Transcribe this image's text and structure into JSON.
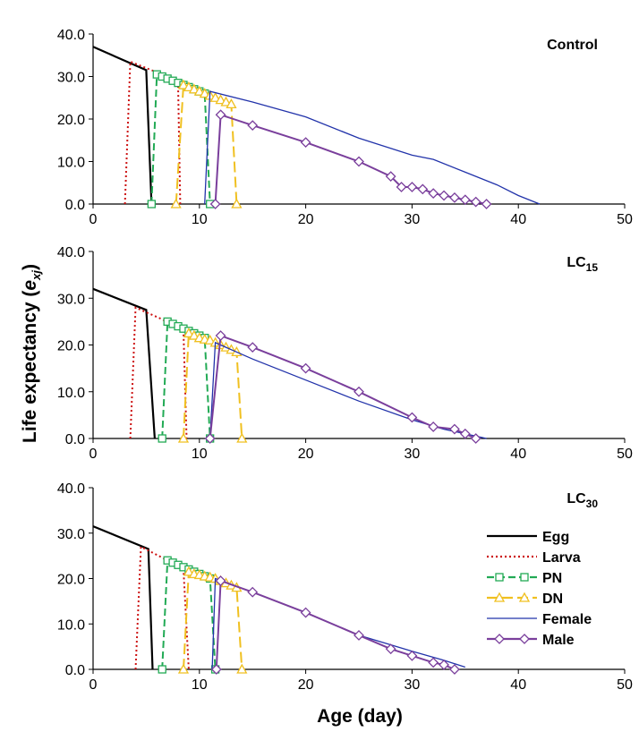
{
  "y_axis_title_prefix": "Life  expectancy (",
  "y_axis_title_sym": "e",
  "y_axis_title_sub": "xj",
  "y_axis_title_suffix": ")",
  "x_axis_title": "Age (day)",
  "legend": [
    "Egg",
    "Larva",
    "PN",
    "DN",
    "Female",
    "Male"
  ],
  "series_style": {
    "Egg": {
      "color": "#000000",
      "dash": "",
      "marker": "none"
    },
    "Larva": {
      "color": "#cc1111",
      "dash": "2,3",
      "marker": "none"
    },
    "PN": {
      "color": "#22aa55",
      "dash": "8,4",
      "marker": "square"
    },
    "DN": {
      "color": "#f0c020",
      "dash": "12,5",
      "marker": "triangle"
    },
    "Female": {
      "color": "#2233aa",
      "dash": "",
      "marker": "none"
    },
    "Male": {
      "color": "#7a3f9c",
      "dash": "",
      "marker": "diamond"
    }
  },
  "chart_data": [
    {
      "type": "line",
      "title": "Control",
      "title_sub": "",
      "xlim": [
        0,
        50
      ],
      "ylim": [
        0,
        40
      ],
      "xticks": [
        "0",
        "10",
        "20",
        "30",
        "40",
        "50"
      ],
      "yticks": [
        "0.0",
        "10.0",
        "20.0",
        "30.0",
        "40.0"
      ],
      "show_legend": false,
      "series": [
        {
          "name": "Egg",
          "x": [
            0,
            5,
            5.5
          ],
          "y": [
            37,
            31.5,
            0
          ]
        },
        {
          "name": "Larva",
          "x": [
            3,
            3.5,
            6,
            8,
            8.2
          ],
          "y": [
            0,
            33.5,
            31,
            28,
            0
          ]
        },
        {
          "name": "PN",
          "x": [
            5.5,
            6,
            6.5,
            7,
            7.5,
            8,
            8.5,
            9,
            9.5,
            10,
            10.5,
            11
          ],
          "y": [
            0,
            30.5,
            30,
            29.5,
            29,
            28.5,
            28,
            27.5,
            27,
            26.5,
            26,
            0
          ]
        },
        {
          "name": "DN",
          "x": [
            7.8,
            8.5,
            9,
            9.5,
            10,
            10.5,
            11,
            11.5,
            12,
            12.5,
            13,
            13.5
          ],
          "y": [
            0,
            28,
            27.5,
            27,
            26.5,
            26,
            25.5,
            25,
            24.5,
            24,
            23.5,
            0
          ]
        },
        {
          "name": "Female",
          "x": [
            10.5,
            11,
            15,
            20,
            25,
            30,
            32,
            35,
            38,
            40,
            42
          ],
          "y": [
            0,
            26.5,
            24,
            20.5,
            15.5,
            11.5,
            10.5,
            7.5,
            4.5,
            2,
            0
          ]
        },
        {
          "name": "Male",
          "x": [
            11.5,
            12,
            15,
            20,
            25,
            28,
            29,
            30,
            31,
            32,
            33,
            34,
            35,
            36,
            37
          ],
          "y": [
            0,
            21,
            18.5,
            14.5,
            10,
            6.5,
            4,
            4,
            3.5,
            2.5,
            2,
            1.5,
            1,
            0.5,
            0
          ]
        }
      ]
    },
    {
      "type": "line",
      "title": "LC",
      "title_sub": "15",
      "xlim": [
        0,
        50
      ],
      "ylim": [
        0,
        40
      ],
      "xticks": [
        "0",
        "10",
        "20",
        "30",
        "40",
        "50"
      ],
      "yticks": [
        "0.0",
        "10.0",
        "20.0",
        "30.0",
        "40.0"
      ],
      "show_legend": false,
      "series": [
        {
          "name": "Egg",
          "x": [
            0,
            5,
            5.8
          ],
          "y": [
            32,
            27.5,
            0
          ]
        },
        {
          "name": "Larva",
          "x": [
            3.5,
            4,
            6.5,
            8.5,
            8.8
          ],
          "y": [
            0,
            28,
            25.5,
            23,
            0
          ]
        },
        {
          "name": "PN",
          "x": [
            6.5,
            7,
            7.5,
            8,
            8.5,
            9,
            9.5,
            10,
            10.5,
            11
          ],
          "y": [
            0,
            25,
            24.5,
            24,
            23.5,
            23,
            22.5,
            22,
            21.5,
            0
          ]
        },
        {
          "name": "DN",
          "x": [
            8.5,
            9,
            9.5,
            10,
            10.5,
            11,
            11.5,
            12,
            12.5,
            13,
            13.5,
            14
          ],
          "y": [
            0,
            22.5,
            22,
            21.5,
            21.2,
            21,
            20.5,
            20,
            19.5,
            19,
            18.5,
            0
          ]
        },
        {
          "name": "Female",
          "x": [
            11,
            11.5,
            15,
            20,
            25,
            30,
            33,
            35,
            37
          ],
          "y": [
            0,
            20.5,
            17,
            12.5,
            8,
            4,
            2,
            1,
            0
          ]
        },
        {
          "name": "Male",
          "x": [
            11,
            12,
            15,
            20,
            25,
            30,
            32,
            34,
            35,
            36
          ],
          "y": [
            0,
            22,
            19.5,
            15,
            10,
            4.5,
            2.5,
            2,
            1,
            0
          ]
        }
      ]
    },
    {
      "type": "line",
      "title": "LC",
      "title_sub": "30",
      "xlim": [
        0,
        50
      ],
      "ylim": [
        0,
        40
      ],
      "xticks": [
        "0",
        "10",
        "20",
        "30",
        "40",
        "50"
      ],
      "yticks": [
        "0.0",
        "10.0",
        "20.0",
        "30.0",
        "40.0"
      ],
      "show_legend": true,
      "series": [
        {
          "name": "Egg",
          "x": [
            0,
            5.2,
            5.6
          ],
          "y": [
            31.5,
            26.5,
            0
          ]
        },
        {
          "name": "Larva",
          "x": [
            4,
            4.5,
            7,
            8.5,
            9
          ],
          "y": [
            0,
            27,
            24,
            22,
            0
          ]
        },
        {
          "name": "PN",
          "x": [
            6.5,
            7,
            7.5,
            8,
            8.5,
            9,
            9.5,
            10,
            10.5,
            11,
            11.5
          ],
          "y": [
            0,
            24,
            23.5,
            23,
            22.5,
            22,
            21.5,
            21,
            20.5,
            20,
            0
          ]
        },
        {
          "name": "DN",
          "x": [
            8.5,
            9,
            9.5,
            10,
            10.5,
            11,
            11.5,
            12,
            12.5,
            13,
            13.5,
            14
          ],
          "y": [
            0,
            21.5,
            21,
            20.8,
            20.5,
            20.3,
            20,
            19.5,
            19,
            18.5,
            18,
            0
          ]
        },
        {
          "name": "Female",
          "x": [
            11.2,
            11.5,
            15,
            20,
            25,
            30,
            33,
            35
          ],
          "y": [
            0,
            20,
            17,
            12.5,
            7.5,
            4,
            2,
            0.5
          ]
        },
        {
          "name": "Male",
          "x": [
            11.6,
            12,
            15,
            20,
            25,
            28,
            30,
            32,
            33,
            34
          ],
          "y": [
            0,
            19.5,
            17,
            12.5,
            7.5,
            4.5,
            3,
            1.5,
            1,
            0
          ]
        }
      ]
    }
  ]
}
